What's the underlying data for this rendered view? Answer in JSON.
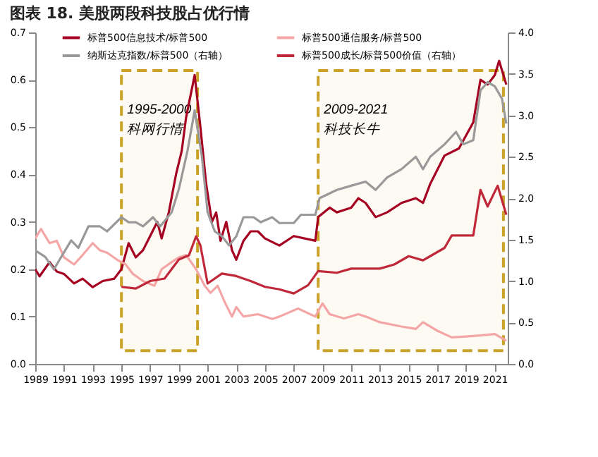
{
  "chart_data": {
    "type": "line",
    "title": "图表 18. 美股两段科技股占优行情",
    "xlim": [
      1989,
      2021.9
    ],
    "xticks": [
      1989,
      1991,
      1993,
      1995,
      1997,
      1999,
      2001,
      2003,
      2005,
      2007,
      2009,
      2011,
      2013,
      2015,
      2017,
      2019,
      2021
    ],
    "ylim": [
      0,
      0.7
    ],
    "yticks": [
      {
        "value": 0,
        "label": "0.0"
      },
      0.1,
      0.2,
      0.3,
      0.4,
      0.5,
      0.6,
      0.7
    ],
    "y2lim": [
      0,
      4.0
    ],
    "y2ticks": [
      {
        "value": 0,
        "label": "0.0"
      },
      0.5,
      {
        "value": 1,
        "label": "1.0"
      },
      1.5,
      {
        "value": 2,
        "label": "2.0"
      },
      2.5,
      {
        "value": 3,
        "label": "3.0"
      },
      3.5,
      {
        "value": 4,
        "label": "4.0"
      }
    ],
    "legend": "top",
    "grid": false,
    "marker": "none",
    "line_style": "solid",
    "bands": [
      {
        "axis": "x",
        "from": 1995,
        "to": 2000.3,
        "label": "1995-2000 科网行情",
        "color": "#c9a227"
      },
      {
        "axis": "x",
        "from": 2008.7,
        "to": 2021.6,
        "label": "2009-2021 科技长牛",
        "color": "#c9a227"
      }
    ],
    "series": [
      {
        "name": "标普500信息技术/标普500",
        "color": "#a50021",
        "x": [
          1989,
          1989.3,
          1990,
          1990.5,
          1991,
          1991.7,
          1992.3,
          1993,
          1993.7,
          1994.5,
          1995,
          1995.5,
          1996,
          1996.5,
          1997,
          1997.5,
          1997.8,
          1998.3,
          1998.8,
          1999.2,
          1999.5,
          2000.1,
          2000.5,
          2000.9,
          2001.3,
          2001.6,
          2001.9,
          2002.3,
          2002.7,
          2003,
          2003.5,
          2004,
          2004.5,
          2005,
          2006,
          2007,
          2008.5,
          2008.7,
          2009.5,
          2010,
          2011,
          2011.5,
          2012,
          2012.7,
          2013.5,
          2014.5,
          2015.5,
          2016,
          2016.5,
          2017.5,
          2018.5,
          2019.5,
          2020,
          2020.5,
          2021,
          2021.3,
          2021.8
        ],
        "values": [
          0.2,
          0.185,
          0.215,
          0.195,
          0.19,
          0.17,
          0.18,
          0.162,
          0.175,
          0.18,
          0.2,
          0.255,
          0.225,
          0.24,
          0.27,
          0.3,
          0.265,
          0.32,
          0.4,
          0.45,
          0.52,
          0.61,
          0.5,
          0.38,
          0.3,
          0.32,
          0.26,
          0.3,
          0.24,
          0.22,
          0.26,
          0.28,
          0.28,
          0.265,
          0.25,
          0.27,
          0.26,
          0.31,
          0.33,
          0.32,
          0.33,
          0.35,
          0.34,
          0.31,
          0.32,
          0.34,
          0.35,
          0.34,
          0.38,
          0.44,
          0.455,
          0.51,
          0.6,
          0.59,
          0.61,
          0.64,
          0.59
        ]
      },
      {
        "name": "标普500通信服务/标普500",
        "color": "#f4a6a6",
        "x": [
          1989,
          1989.4,
          1990,
          1990.5,
          1991,
          1991.7,
          1992.3,
          1993,
          1993.5,
          1994,
          1994.7,
          1995.3,
          1995.8,
          1996.5,
          1997.3,
          1997.8,
          1998.5,
          1999,
          1999.5,
          2000.2,
          2000.8,
          2001.2,
          2001.7,
          2002.2,
          2002.7,
          2003,
          2003.5,
          2004.5,
          2005.5,
          2006,
          2007.3,
          2008.5,
          2009,
          2009.5,
          2010.5,
          2011.5,
          2012,
          2013,
          2014.5,
          2015.5,
          2016,
          2017,
          2018,
          2019,
          2020,
          2021,
          2021.8
        ],
        "values": [
          0.265,
          0.285,
          0.255,
          0.26,
          0.225,
          0.21,
          0.23,
          0.255,
          0.24,
          0.235,
          0.22,
          0.21,
          0.19,
          0.175,
          0.165,
          0.2,
          0.215,
          0.225,
          0.23,
          0.2,
          0.165,
          0.15,
          0.165,
          0.13,
          0.1,
          0.12,
          0.1,
          0.105,
          0.095,
          0.1,
          0.117,
          0.1,
          0.128,
          0.105,
          0.096,
          0.105,
          0.1,
          0.088,
          0.079,
          0.074,
          0.088,
          0.07,
          0.056,
          0.058,
          0.06,
          0.063,
          0.049
        ]
      },
      {
        "name": "纳斯达克指数/标普500（右轴）",
        "color": "#999999",
        "axis": "y2",
        "x": [
          1989,
          1989.7,
          1990.3,
          1990.7,
          1991.5,
          1992,
          1992.7,
          1993.5,
          1994,
          1995,
          1995.5,
          1996,
          1996.5,
          1997.2,
          1997.7,
          1998.5,
          1999,
          1999.6,
          2000.1,
          2000.6,
          2001,
          2001.5,
          2002,
          2002.5,
          2003,
          2003.5,
          2004.2,
          2004.7,
          2005.5,
          2006,
          2007,
          2007.5,
          2008.5,
          2008.8,
          2010,
          2011,
          2012,
          2012.7,
          2013.5,
          2014.5,
          2015.5,
          2016,
          2016.5,
          2017.5,
          2018.3,
          2018.8,
          2019.5,
          2020,
          2020.5,
          2021,
          2021.5,
          2021.8
        ],
        "values": [
          1.37,
          1.29,
          1.14,
          1.26,
          1.49,
          1.4,
          1.66,
          1.66,
          1.6,
          1.77,
          1.71,
          1.71,
          1.66,
          1.77,
          1.66,
          1.83,
          2.11,
          2.57,
          3.06,
          2.51,
          1.83,
          1.6,
          1.54,
          1.43,
          1.54,
          1.77,
          1.77,
          1.71,
          1.77,
          1.7,
          1.7,
          1.8,
          1.8,
          2.0,
          2.1,
          2.15,
          2.2,
          2.1,
          2.25,
          2.35,
          2.5,
          2.35,
          2.5,
          2.65,
          2.8,
          2.65,
          2.7,
          3.3,
          3.4,
          3.35,
          3.2,
          2.9
        ]
      },
      {
        "name": "标普500成长/标普500价值（右轴）",
        "color": "#c0283a",
        "axis": "y2",
        "x": [
          1995,
          1996,
          1997,
          1998,
          1999,
          1999.7,
          2000.2,
          2000.5,
          2001,
          2002,
          2003,
          2004,
          2005,
          2006,
          2007,
          2008,
          2008.7,
          2010,
          2011,
          2012,
          2013,
          2014,
          2015,
          2016,
          2016.5,
          2017.5,
          2018,
          2018.5,
          2019.5,
          2020,
          2020.5,
          2021.2,
          2021.8
        ],
        "values": [
          0.93,
          0.91,
          1.0,
          1.03,
          1.26,
          1.31,
          1.54,
          1.43,
          0.97,
          1.09,
          1.06,
          1.0,
          0.93,
          0.9,
          0.85,
          0.95,
          1.12,
          1.1,
          1.15,
          1.15,
          1.15,
          1.2,
          1.3,
          1.25,
          1.3,
          1.4,
          1.55,
          1.55,
          1.55,
          2.1,
          1.9,
          2.15,
          1.8
        ]
      }
    ]
  }
}
